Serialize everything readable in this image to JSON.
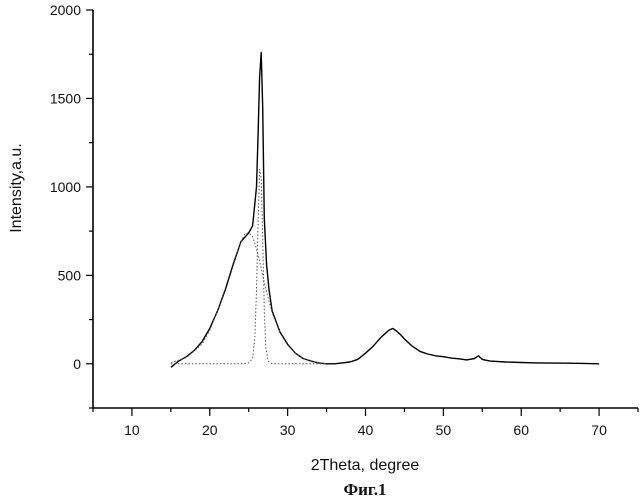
{
  "figure_caption": "Фиг.1",
  "chart_data": {
    "type": "line",
    "title": "",
    "xlabel": "2Theta, degree",
    "ylabel": "Intensity,a.u.",
    "xlim": [
      5,
      75
    ],
    "ylim": [
      -250,
      2000
    ],
    "x_ticks": [
      10,
      20,
      30,
      40,
      50,
      60,
      70
    ],
    "y_ticks": [
      0,
      500,
      1000,
      1500,
      2000
    ],
    "grid": false,
    "legend": "none",
    "series": [
      {
        "style": "solid",
        "x": [
          15,
          16,
          17,
          18,
          19,
          20,
          21,
          22,
          23,
          24,
          25,
          25.5,
          26,
          26.2,
          26.4,
          26.6,
          26.8,
          27,
          27.3,
          27.6,
          28,
          29,
          30,
          31,
          32,
          33,
          34,
          35,
          36,
          37,
          38,
          39,
          40,
          41,
          42,
          43,
          43.5,
          44,
          44.5,
          45,
          46,
          47,
          48,
          49,
          50,
          51,
          52,
          53,
          54,
          54.5,
          55,
          56,
          58,
          60,
          62,
          64,
          66,
          68,
          70
        ],
        "y": [
          -20,
          15,
          40,
          75,
          125,
          200,
          300,
          420,
          560,
          690,
          740,
          780,
          1000,
          1300,
          1620,
          1760,
          1450,
          820,
          560,
          420,
          300,
          180,
          110,
          60,
          30,
          15,
          5,
          0,
          0,
          5,
          10,
          25,
          60,
          100,
          150,
          190,
          200,
          185,
          165,
          140,
          100,
          70,
          55,
          45,
          40,
          32,
          28,
          22,
          30,
          45,
          25,
          15,
          10,
          7,
          5,
          4,
          3,
          2,
          0
        ]
      },
      {
        "style": "dotted",
        "x": [
          15,
          17,
          19,
          20,
          21,
          22,
          23,
          24,
          24.5,
          25,
          25.5,
          26,
          26.5,
          27,
          27.5,
          28,
          29,
          30,
          31,
          32,
          33,
          34,
          35
        ],
        "y": [
          5,
          35,
          110,
          190,
          300,
          430,
          570,
          690,
          735,
          740,
          720,
          650,
          560,
          460,
          370,
          290,
          175,
          105,
          60,
          30,
          15,
          6,
          0
        ]
      },
      {
        "style": "dotted",
        "x": [
          15,
          20,
          24,
          25,
          25.5,
          25.8,
          26,
          26.2,
          26.4,
          26.6,
          26.8,
          27,
          27.2,
          27.5,
          28,
          30,
          35
        ],
        "y": [
          0,
          0,
          0,
          5,
          30,
          150,
          420,
          800,
          1100,
          1050,
          700,
          300,
          90,
          15,
          0,
          0,
          0
        ]
      }
    ]
  }
}
